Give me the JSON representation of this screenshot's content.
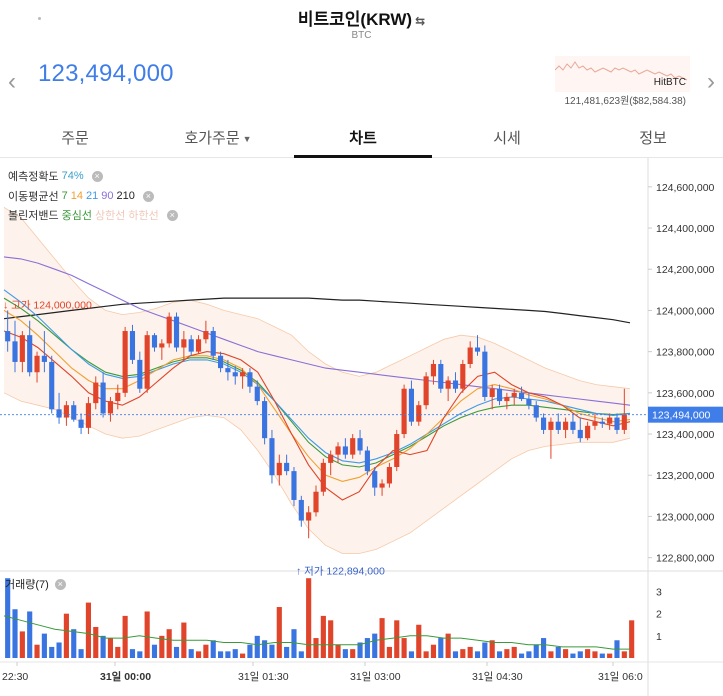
{
  "header": {
    "title": "비트코인(KRW)",
    "swap_icon": "⇆",
    "subtitle": "BTC",
    "current_price": "123,494,000",
    "exchange_name": "HitBTC",
    "exchange_price": "121,481,623원($82,584.38)"
  },
  "tabs": [
    {
      "label": "주문"
    },
    {
      "label": "호가주문"
    },
    {
      "label": "차트"
    },
    {
      "label": "시세"
    },
    {
      "label": "정보"
    }
  ],
  "indicators": {
    "prediction_label": "예측정확도",
    "prediction_value": "74%",
    "ma_label": "이동평균선",
    "ma_periods": [
      "7",
      "14",
      "21",
      "90",
      "210"
    ],
    "bb_label": "볼린저밴드",
    "bb_center": "중심선",
    "bb_upper": "상한선",
    "bb_lower": "하한선"
  },
  "annotations": {
    "high_label": "고가 124,000,000",
    "low_label": "저가 122,894,000",
    "current_price_tag": "123,494,000"
  },
  "volume_label": "거래량(7)",
  "colors": {
    "accent": "#3f7de8",
    "up": "#e0442a",
    "down": "#3a74e0",
    "ma7": "#e0442a",
    "ma14": "#f0a030",
    "ma21": "#3f9ae8",
    "ma90": "#8a6fd8",
    "ma210": "#222222",
    "bb_center": "#3a9a3a",
    "bb_band": "#f6c9a8"
  },
  "chart_data": {
    "type": "candlestick",
    "x_tick_labels": [
      "22:30",
      "31일 00:00",
      "31일 01:30",
      "31일 03:00",
      "31일 04:30",
      "31일 06:0"
    ],
    "y_tick_labels": [
      "124,600,000",
      "124,400,000",
      "124,200,000",
      "124,000,000",
      "123,800,000",
      "123,600,000",
      "123,400,000",
      "123,200,000",
      "123,000,000",
      "122,800,000"
    ],
    "ylim": [
      122740000,
      124740000
    ],
    "volume_tick_labels": [
      "3",
      "2",
      "1"
    ],
    "volume_ylim": [
      0,
      3.7
    ],
    "candles": [
      [
        123900000,
        124000000,
        123800000,
        123850000
      ],
      [
        123850000,
        123950000,
        123700000,
        123750000
      ],
      [
        123750000,
        123900000,
        123700000,
        123880000
      ],
      [
        123880000,
        123950000,
        123680000,
        123700000
      ],
      [
        123700000,
        123800000,
        123650000,
        123780000
      ],
      [
        123780000,
        123900000,
        123700000,
        123750000
      ],
      [
        123750000,
        123780000,
        123500000,
        123520000
      ],
      [
        123520000,
        123600000,
        123450000,
        123480000
      ],
      [
        123480000,
        123560000,
        123440000,
        123540000
      ],
      [
        123540000,
        123560000,
        123460000,
        123470000
      ],
      [
        123470000,
        123500000,
        123400000,
        123430000
      ],
      [
        123430000,
        123580000,
        123400000,
        123550000
      ],
      [
        123550000,
        123680000,
        123520000,
        123650000
      ],
      [
        123650000,
        123700000,
        123480000,
        123500000
      ],
      [
        123500000,
        123580000,
        123460000,
        123560000
      ],
      [
        123560000,
        123640000,
        123520000,
        123600000
      ],
      [
        123600000,
        123920000,
        123580000,
        123900000
      ],
      [
        123900000,
        123930000,
        123740000,
        123760000
      ],
      [
        123760000,
        123800000,
        123600000,
        123620000
      ],
      [
        123620000,
        123900000,
        123600000,
        123880000
      ],
      [
        123880000,
        123890000,
        123800000,
        123820000
      ],
      [
        123820000,
        123860000,
        123760000,
        123840000
      ],
      [
        123840000,
        123990000,
        123820000,
        123970000
      ],
      [
        123970000,
        123990000,
        123800000,
        123820000
      ],
      [
        123820000,
        123900000,
        123760000,
        123860000
      ],
      [
        123860000,
        123880000,
        123780000,
        123800000
      ],
      [
        123800000,
        123880000,
        123790000,
        123860000
      ],
      [
        123860000,
        123950000,
        123840000,
        123900000
      ],
      [
        123900000,
        123920000,
        123760000,
        123780000
      ],
      [
        123780000,
        123800000,
        123700000,
        123720000
      ],
      [
        123720000,
        123760000,
        123660000,
        123700000
      ],
      [
        123700000,
        123730000,
        123640000,
        123680000
      ],
      [
        123680000,
        123720000,
        123620000,
        123700000
      ],
      [
        123700000,
        123720000,
        123600000,
        123630000
      ],
      [
        123630000,
        123660000,
        123540000,
        123560000
      ],
      [
        123560000,
        123580000,
        123350000,
        123380000
      ],
      [
        123380000,
        123420000,
        123160000,
        123200000
      ],
      [
        123200000,
        123300000,
        123150000,
        123260000
      ],
      [
        123260000,
        123300000,
        123200000,
        123220000
      ],
      [
        123220000,
        123240000,
        123050000,
        123080000
      ],
      [
        123080000,
        123100000,
        122950000,
        122980000
      ],
      [
        122980000,
        123050000,
        122894000,
        123020000
      ],
      [
        123020000,
        123150000,
        123000000,
        123120000
      ],
      [
        123120000,
        123280000,
        123100000,
        123260000
      ],
      [
        123260000,
        123320000,
        123200000,
        123300000
      ],
      [
        123300000,
        123360000,
        123260000,
        123340000
      ],
      [
        123340000,
        123380000,
        123280000,
        123300000
      ],
      [
        123300000,
        123400000,
        123280000,
        123380000
      ],
      [
        123380000,
        123420000,
        123300000,
        123320000
      ],
      [
        123320000,
        123340000,
        123200000,
        123220000
      ],
      [
        123220000,
        123240000,
        123100000,
        123140000
      ],
      [
        123140000,
        123180000,
        123100000,
        123160000
      ],
      [
        123160000,
        123260000,
        123140000,
        123240000
      ],
      [
        123240000,
        123420000,
        123220000,
        123400000
      ],
      [
        123400000,
        123640000,
        123380000,
        123620000
      ],
      [
        123620000,
        123660000,
        123440000,
        123460000
      ],
      [
        123460000,
        123560000,
        123440000,
        123540000
      ],
      [
        123540000,
        123700000,
        123520000,
        123680000
      ],
      [
        123680000,
        123760000,
        123640000,
        123740000
      ],
      [
        123740000,
        123760000,
        123600000,
        123620000
      ],
      [
        123620000,
        123680000,
        123560000,
        123660000
      ],
      [
        123660000,
        123700000,
        123600000,
        123620000
      ],
      [
        123620000,
        123760000,
        123600000,
        123740000
      ],
      [
        123740000,
        123850000,
        123720000,
        123820000
      ],
      [
        123820000,
        123880000,
        123780000,
        123800000
      ],
      [
        123800000,
        123830000,
        123560000,
        123580000
      ],
      [
        123580000,
        123640000,
        123520000,
        123620000
      ],
      [
        123620000,
        123640000,
        123540000,
        123560000
      ],
      [
        123560000,
        123600000,
        123520000,
        123580000
      ],
      [
        123580000,
        123620000,
        123540000,
        123600000
      ],
      [
        123600000,
        123630000,
        123560000,
        123570000
      ],
      [
        123570000,
        123600000,
        123520000,
        123540000
      ],
      [
        123540000,
        123560000,
        123460000,
        123480000
      ],
      [
        123480000,
        123500000,
        123400000,
        123420000
      ],
      [
        123420000,
        123480000,
        123280000,
        123460000
      ],
      [
        123460000,
        123500000,
        123400000,
        123420000
      ],
      [
        123420000,
        123480000,
        123380000,
        123460000
      ],
      [
        123460000,
        123500000,
        123400000,
        123420000
      ],
      [
        123420000,
        123480000,
        123360000,
        123380000
      ],
      [
        123380000,
        123460000,
        123370000,
        123440000
      ],
      [
        123440000,
        123500000,
        123420000,
        123460000
      ],
      [
        123460000,
        123480000,
        123430000,
        123450000
      ],
      [
        123450000,
        123500000,
        123420000,
        123480000
      ],
      [
        123480000,
        123500000,
        123400000,
        123420000
      ],
      [
        123420000,
        123620000,
        123400000,
        123494000
      ]
    ],
    "ma_lines": {
      "ma7": [
        123900000,
        123870000,
        123820000,
        123750000,
        123680000,
        123600000,
        123560000,
        123540000,
        123580000,
        123650000,
        123720000,
        123780000,
        123800000,
        123790000,
        123760000,
        123700000,
        123560000,
        123400000,
        123250000,
        123140000,
        123080000,
        123120000,
        123240000,
        123320000,
        123300000,
        123320000,
        123480000,
        123600000,
        123680000,
        123700000,
        123640000,
        123600000,
        123580000,
        123540000,
        123480000,
        123460000,
        123440000,
        123460000
      ],
      "ma14": [
        124000000,
        123950000,
        123880000,
        123800000,
        123720000,
        123660000,
        123620000,
        123620000,
        123660000,
        123710000,
        123760000,
        123780000,
        123780000,
        123760000,
        123720000,
        123640000,
        123520000,
        123400000,
        123290000,
        123200000,
        123170000,
        123190000,
        123240000,
        123280000,
        123330000,
        123400000,
        123480000,
        123560000,
        123620000,
        123640000,
        123620000,
        123590000,
        123570000,
        123540000,
        123500000,
        123480000,
        123460000,
        123470000
      ],
      "ma21": [
        124100000,
        124040000,
        123970000,
        123890000,
        123810000,
        123740000,
        123690000,
        123670000,
        123680000,
        123710000,
        123740000,
        123760000,
        123760000,
        123740000,
        123700000,
        123640000,
        123560000,
        123470000,
        123380000,
        123310000,
        123270000,
        123260000,
        123280000,
        123310000,
        123350000,
        123400000,
        123450000,
        123500000,
        123540000,
        123570000,
        123580000,
        123570000,
        123560000,
        123540000,
        123520000,
        123500000,
        123490000,
        123500000
      ],
      "ma90": [
        124260000,
        124250000,
        124230000,
        124200000,
        124170000,
        124130000,
        124090000,
        124050000,
        124010000,
        123980000,
        123950000,
        123920000,
        123890000,
        123860000,
        123830000,
        123800000,
        123780000,
        123760000,
        123740000,
        123720000,
        123710000,
        123700000,
        123690000,
        123680000,
        123670000,
        123660000,
        123650000,
        123640000,
        123630000,
        123620000,
        123610000,
        123600000,
        123590000,
        123580000,
        123570000,
        123560000,
        123550000,
        123540000
      ],
      "ma210": [
        123960000,
        123970000,
        123980000,
        123990000,
        124000000,
        124010000,
        124020000,
        124030000,
        124035000,
        124040000,
        124045000,
        124050000,
        124055000,
        124060000,
        124060000,
        124060000,
        124060000,
        124060000,
        124060000,
        124055000,
        124050000,
        124050000,
        124045000,
        124040000,
        124035000,
        124030000,
        124025000,
        124020000,
        124015000,
        124010000,
        124005000,
        124000000,
        123995000,
        123985000,
        123975000,
        123965000,
        123955000,
        123940000
      ],
      "bb_center": [
        124060000,
        124010000,
        123950000,
        123880000,
        123810000,
        123750000,
        123700000,
        123680000,
        123690000,
        123720000,
        123750000,
        123770000,
        123770000,
        123750000,
        123710000,
        123650000,
        123560000,
        123460000,
        123360000,
        123290000,
        123250000,
        123240000,
        123260000,
        123300000,
        123340000,
        123390000,
        123440000,
        123480000,
        123510000,
        123530000,
        123540000,
        123540000,
        123530000,
        123520000,
        123510000,
        123500000,
        123495000,
        123500000
      ],
      "bb_upper": [
        124500000,
        124450000,
        124350000,
        124250000,
        124150000,
        124060000,
        124000000,
        123980000,
        123990000,
        124010000,
        124040000,
        124050000,
        124030000,
        124000000,
        123980000,
        123960000,
        123920000,
        123880000,
        123800000,
        123740000,
        123700000,
        123680000,
        123700000,
        123740000,
        123780000,
        123820000,
        123860000,
        123880000,
        123870000,
        123840000,
        123800000,
        123760000,
        123720000,
        123690000,
        123660000,
        123640000,
        123630000,
        123620000
      ],
      "bb_lower": [
        123600000,
        123560000,
        123540000,
        123520000,
        123480000,
        123440000,
        123400000,
        123380000,
        123390000,
        123420000,
        123450000,
        123480000,
        123490000,
        123480000,
        123420000,
        123320000,
        123200000,
        123060000,
        122940000,
        122860000,
        122820000,
        122820000,
        122840000,
        122880000,
        122920000,
        122980000,
        123040000,
        123100000,
        123160000,
        123220000,
        123280000,
        123320000,
        123340000,
        123350000,
        123360000,
        123360000,
        123360000,
        123380000
      ]
    },
    "volume": [
      3.6,
      2.2,
      1.2,
      2.1,
      0.6,
      1.1,
      0.5,
      0.7,
      2.0,
      1.3,
      0.4,
      2.5,
      1.4,
      1.0,
      0.9,
      0.5,
      1.9,
      0.4,
      0.3,
      2.1,
      0.6,
      1.0,
      1.3,
      0.5,
      1.6,
      0.4,
      0.3,
      0.6,
      0.8,
      0.3,
      0.3,
      0.4,
      0.2,
      0.6,
      1.0,
      0.8,
      0.6,
      2.3,
      0.5,
      1.3,
      0.3,
      3.6,
      0.9,
      1.9,
      1.7,
      0.6,
      0.4,
      0.4,
      0.7,
      0.9,
      1.1,
      1.8,
      0.5,
      1.7,
      0.9,
      0.3,
      1.5,
      0.3,
      0.6,
      0.9,
      1.1,
      0.3,
      0.4,
      0.5,
      0.3,
      0.7,
      0.8,
      0.3,
      0.4,
      0.5,
      0.2,
      0.3,
      0.6,
      0.9,
      0.3,
      0.5,
      0.4,
      0.2,
      0.3,
      0.4,
      0.3,
      0.2,
      0.2,
      0.8,
      0.3,
      1.7
    ],
    "volume_ma": [
      1.9,
      1.7,
      1.5,
      1.3,
      1.2,
      1.1,
      0.9,
      0.9,
      1.0,
      0.9,
      0.8,
      0.8,
      0.8,
      0.7,
      0.7,
      0.6,
      0.7,
      0.7,
      0.6,
      0.6,
      0.6,
      0.6,
      0.8,
      0.9,
      1.0,
      1.0,
      0.9,
      0.9,
      0.8,
      0.7,
      0.7,
      0.6,
      0.6,
      0.5,
      0.5,
      0.5,
      0.4,
      0.4
    ]
  }
}
